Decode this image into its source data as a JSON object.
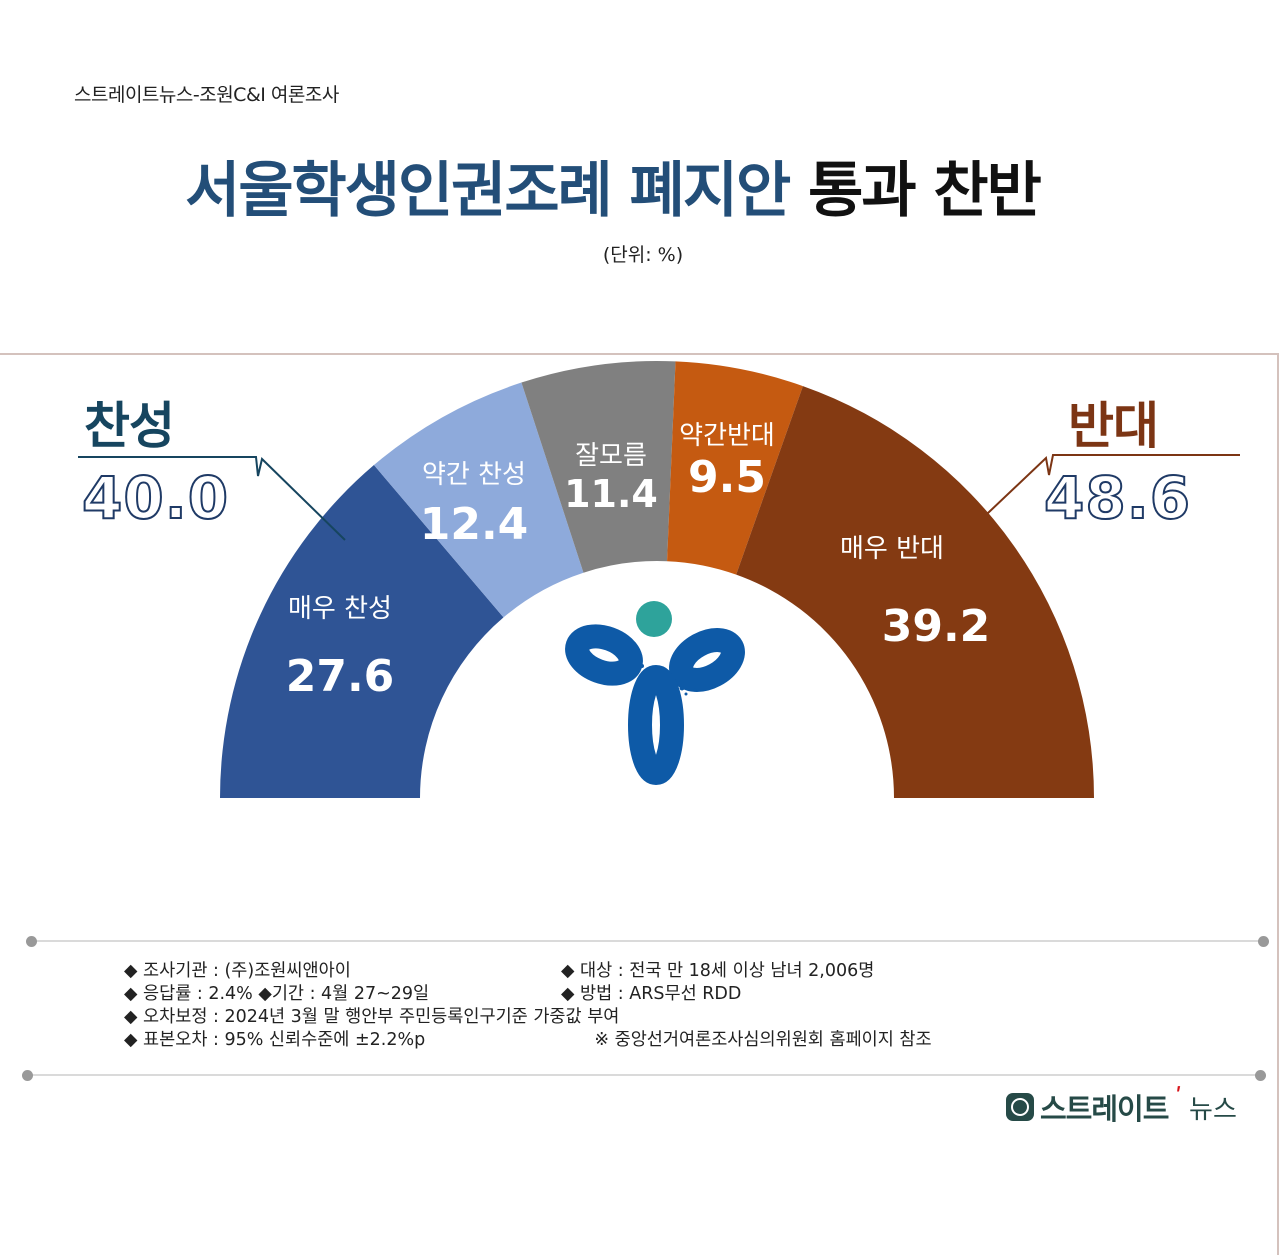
{
  "header": {
    "source": "스트레이트뉴스-조원C&I 여론조사",
    "title_part1": "서울학생인권조례 폐지안",
    "title_part2": "통과 찬반",
    "unit": "(단위: %)"
  },
  "summary": {
    "pro_label": "찬성",
    "pro_total": "40.0",
    "con_label": "반대",
    "con_total": "48.6",
    "pro_color": "#16455f",
    "con_color": "#7c3514"
  },
  "chart_data": {
    "type": "pie",
    "subtype": "semicircle-donut",
    "title": "서울학생인권조례 폐지안 통과 찬반",
    "unit": "%",
    "categories": [
      "매우 찬성",
      "약간 찬성",
      "잘모름",
      "약간반대",
      "매우 반대"
    ],
    "values": [
      27.6,
      12.4,
      11.4,
      9.5,
      39.2
    ],
    "colors": [
      "#2f5495",
      "#8eaadb",
      "#808080",
      "#c55a11",
      "#843a12"
    ],
    "groups": [
      {
        "name": "찬성",
        "total": 40.0,
        "members": [
          "매우 찬성",
          "약간 찬성"
        ]
      },
      {
        "name": "반대",
        "total": 48.6,
        "members": [
          "약간반대",
          "매우 반대"
        ]
      }
    ],
    "legend": "none"
  },
  "segments": [
    {
      "name": "매우 찬성",
      "value": "27.6"
    },
    {
      "name": "약간 찬성",
      "value": "12.4"
    },
    {
      "name": "잘모름",
      "value": "11.4"
    },
    {
      "name": "약간반대",
      "value": "9.5"
    },
    {
      "name": "매우 반대",
      "value": "39.2"
    }
  ],
  "notes": {
    "rows": [
      {
        "left": "◆ 조사기관 : (주)조원씨앤아이",
        "right": "◆ 대상 : 전국 만 18세 이상 남녀 2,006명"
      },
      {
        "left": "◆ 응답률 : 2.4% ◆기간 : 4월 27~29일",
        "right": " ◆ 방법 : ARS무선 RDD"
      },
      {
        "left": "◆ 오차보정 : 2024년 3월 말 행안부 주민등록인구기준 가중값 부여",
        "right": ""
      },
      {
        "left": "◆ 표본오차 : 95% 신뢰수준에 ±2.2%p",
        "right": "      ※ 중앙선거여론조사심의위원회 홈페이지 참조"
      }
    ]
  },
  "brand": {
    "name": "스트레이트",
    "sub": "뉴스"
  }
}
